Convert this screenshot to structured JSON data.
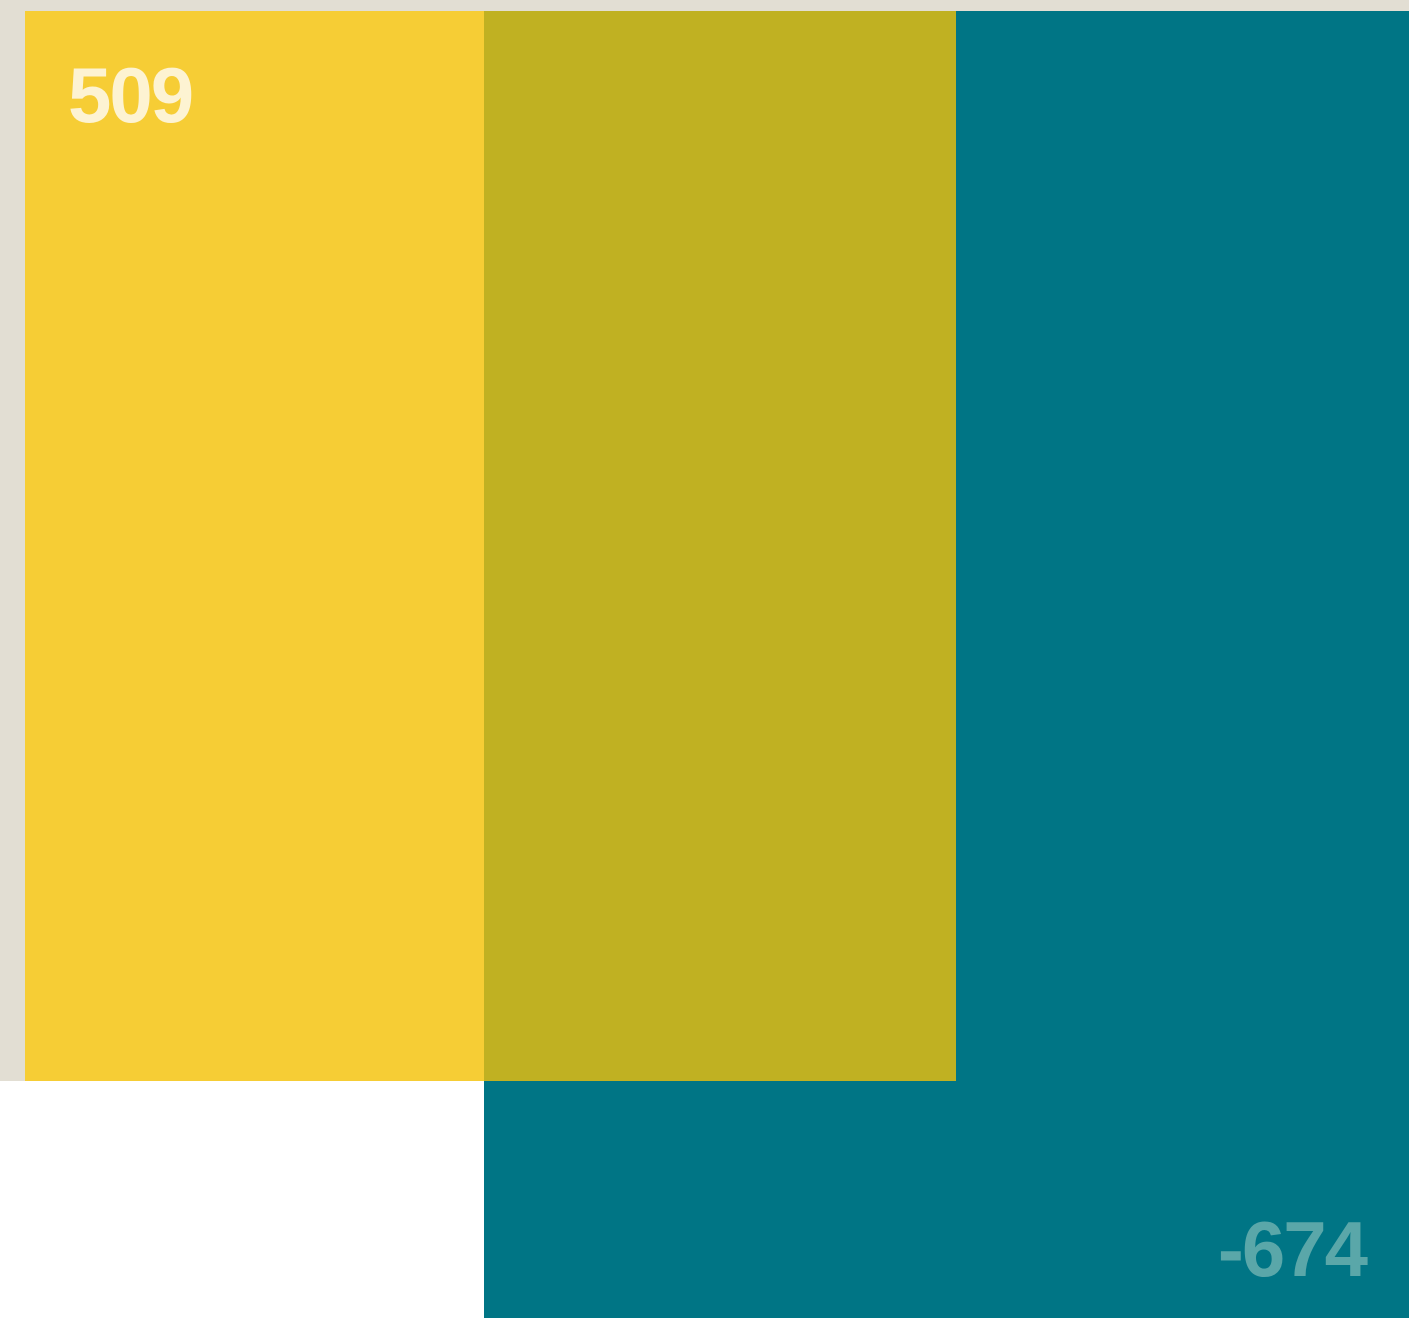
{
  "colors": {
    "background": "#e2ded3",
    "yellow": "#f6cd35",
    "olive": "#c0b122",
    "teal": "#007585",
    "top_label": "#fdf3d2",
    "bottom_label": "#5aa7a9"
  },
  "labels": {
    "top_value": "509",
    "bottom_value": "-674"
  }
}
